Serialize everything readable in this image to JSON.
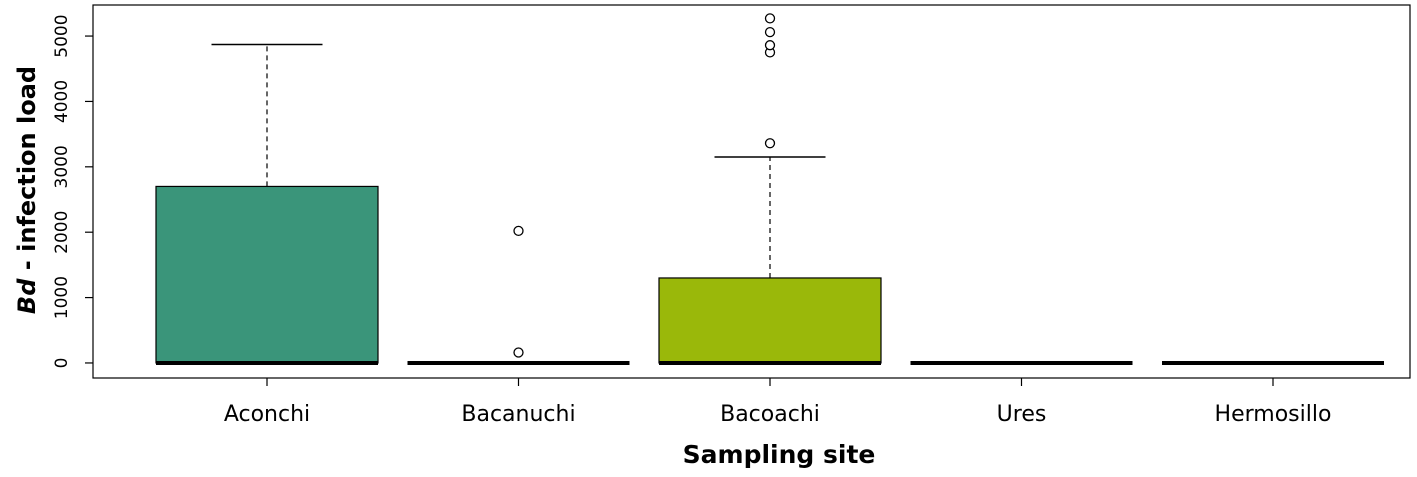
{
  "chart_data": {
    "type": "box",
    "ylabel": [
      "Bd",
      "- infection load"
    ],
    "xlabel": "Sampling site",
    "categories": [
      "Aconchi",
      "Bacanuchi",
      "Bacoachi",
      "Ures",
      "Hermosillo"
    ],
    "colors": [
      "#3a957a",
      "#ffffff",
      "#9ab80a",
      "#ffffff",
      "#ffffff"
    ],
    "boxes": [
      {
        "whisker_low": 0,
        "q1": 0,
        "median": 0,
        "q3": 2700,
        "whisker_high": 4870,
        "outliers": []
      },
      {
        "whisker_low": 0,
        "q1": 0,
        "median": 0,
        "q3": 0,
        "whisker_high": 0,
        "outliers": [
          2020,
          160
        ]
      },
      {
        "whisker_low": 0,
        "q1": 0,
        "median": 0,
        "q3": 1300,
        "whisker_high": 3150,
        "outliers": [
          3360,
          4750,
          4860,
          5060,
          5270
        ]
      },
      {
        "whisker_low": 0,
        "q1": 0,
        "median": 0,
        "q3": 0,
        "whisker_high": 0,
        "outliers": []
      },
      {
        "whisker_low": 0,
        "q1": 0,
        "median": 0,
        "q3": 0,
        "whisker_high": 0,
        "outliers": []
      }
    ],
    "ylim": [
      -230,
      5475
    ],
    "yticks": [
      0,
      1000,
      2000,
      3000,
      4000,
      5000
    ]
  }
}
